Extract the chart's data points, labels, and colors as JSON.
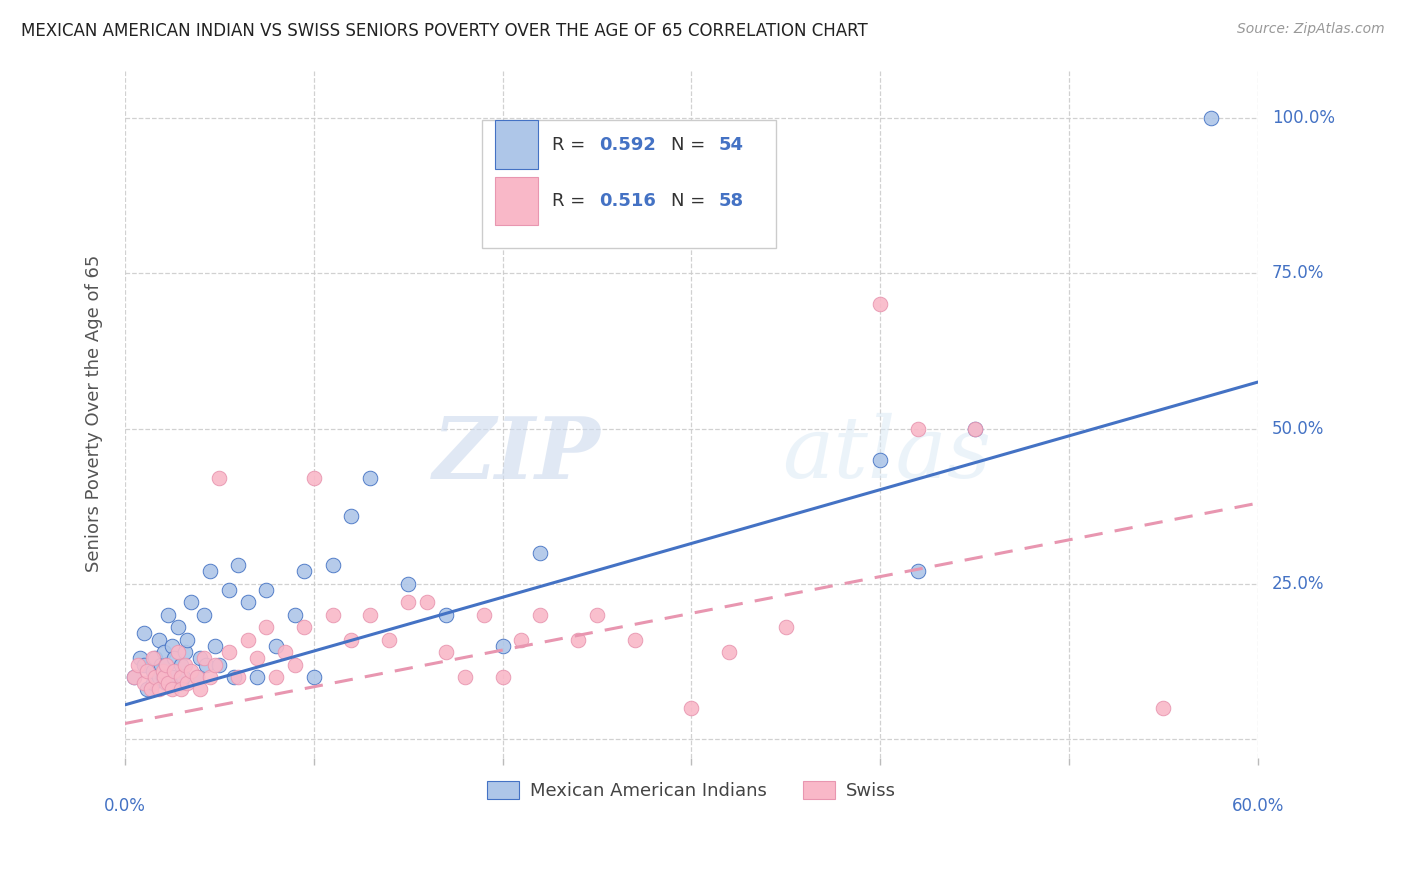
{
  "title": "MEXICAN AMERICAN INDIAN VS SWISS SENIORS POVERTY OVER THE AGE OF 65 CORRELATION CHART",
  "source": "Source: ZipAtlas.com",
  "ylabel": "Seniors Poverty Over the Age of 65",
  "xlim": [
    0.0,
    0.6
  ],
  "ylim": [
    -0.03,
    1.08
  ],
  "watermark_zip": "ZIP",
  "watermark_atlas": "atlas",
  "blue_color": "#aec6e8",
  "pink_color": "#f9b8c8",
  "line_blue": "#4472c4",
  "line_pink": "#e896b0",
  "blue_scatter_x": [
    0.005,
    0.008,
    0.01,
    0.01,
    0.012,
    0.015,
    0.015,
    0.016,
    0.018,
    0.018,
    0.019,
    0.02,
    0.021,
    0.022,
    0.022,
    0.023,
    0.025,
    0.025,
    0.026,
    0.028,
    0.03,
    0.03,
    0.031,
    0.032,
    0.033,
    0.035,
    0.038,
    0.04,
    0.042,
    0.043,
    0.045,
    0.048,
    0.05,
    0.055,
    0.058,
    0.06,
    0.065,
    0.07,
    0.075,
    0.08,
    0.09,
    0.095,
    0.1,
    0.11,
    0.12,
    0.13,
    0.15,
    0.17,
    0.2,
    0.22,
    0.4,
    0.42,
    0.45,
    0.575
  ],
  "blue_scatter_y": [
    0.1,
    0.13,
    0.12,
    0.17,
    0.08,
    0.09,
    0.11,
    0.13,
    0.1,
    0.16,
    0.12,
    0.1,
    0.14,
    0.09,
    0.12,
    0.2,
    0.1,
    0.15,
    0.13,
    0.18,
    0.09,
    0.12,
    0.1,
    0.14,
    0.16,
    0.22,
    0.1,
    0.13,
    0.2,
    0.12,
    0.27,
    0.15,
    0.12,
    0.24,
    0.1,
    0.28,
    0.22,
    0.1,
    0.24,
    0.15,
    0.2,
    0.27,
    0.1,
    0.28,
    0.36,
    0.42,
    0.25,
    0.2,
    0.15,
    0.3,
    0.45,
    0.27,
    0.5,
    1.0
  ],
  "pink_scatter_x": [
    0.005,
    0.007,
    0.01,
    0.012,
    0.014,
    0.015,
    0.016,
    0.018,
    0.02,
    0.021,
    0.022,
    0.023,
    0.025,
    0.026,
    0.028,
    0.03,
    0.03,
    0.032,
    0.033,
    0.035,
    0.038,
    0.04,
    0.042,
    0.045,
    0.048,
    0.05,
    0.055,
    0.06,
    0.065,
    0.07,
    0.075,
    0.08,
    0.085,
    0.09,
    0.095,
    0.1,
    0.11,
    0.12,
    0.13,
    0.14,
    0.15,
    0.16,
    0.17,
    0.18,
    0.19,
    0.2,
    0.21,
    0.22,
    0.24,
    0.25,
    0.27,
    0.3,
    0.32,
    0.35,
    0.4,
    0.42,
    0.45,
    0.55
  ],
  "pink_scatter_y": [
    0.1,
    0.12,
    0.09,
    0.11,
    0.08,
    0.13,
    0.1,
    0.08,
    0.11,
    0.1,
    0.12,
    0.09,
    0.08,
    0.11,
    0.14,
    0.1,
    0.08,
    0.12,
    0.09,
    0.11,
    0.1,
    0.08,
    0.13,
    0.1,
    0.12,
    0.42,
    0.14,
    0.1,
    0.16,
    0.13,
    0.18,
    0.1,
    0.14,
    0.12,
    0.18,
    0.42,
    0.2,
    0.16,
    0.2,
    0.16,
    0.22,
    0.22,
    0.14,
    0.1,
    0.2,
    0.1,
    0.16,
    0.2,
    0.16,
    0.2,
    0.16,
    0.05,
    0.14,
    0.18,
    0.7,
    0.5,
    0.5,
    0.05
  ],
  "blue_line_x": [
    0.0,
    0.6
  ],
  "blue_line_y": [
    0.055,
    0.575
  ],
  "pink_line_x": [
    0.0,
    0.6
  ],
  "pink_line_y": [
    0.025,
    0.38
  ],
  "ytick_values": [
    0.0,
    0.25,
    0.5,
    0.75,
    1.0
  ],
  "ytick_right_labels": [
    "",
    "25.0%",
    "50.0%",
    "75.0%",
    "100.0%"
  ],
  "xtick_values": [
    0.0,
    0.1,
    0.2,
    0.3,
    0.4,
    0.5,
    0.6
  ],
  "legend_label_blue": "Mexican American Indians",
  "legend_label_pink": "Swiss",
  "legend_r1": "0.592",
  "legend_n1": "54",
  "legend_r2": "0.516",
  "legend_n2": "58"
}
